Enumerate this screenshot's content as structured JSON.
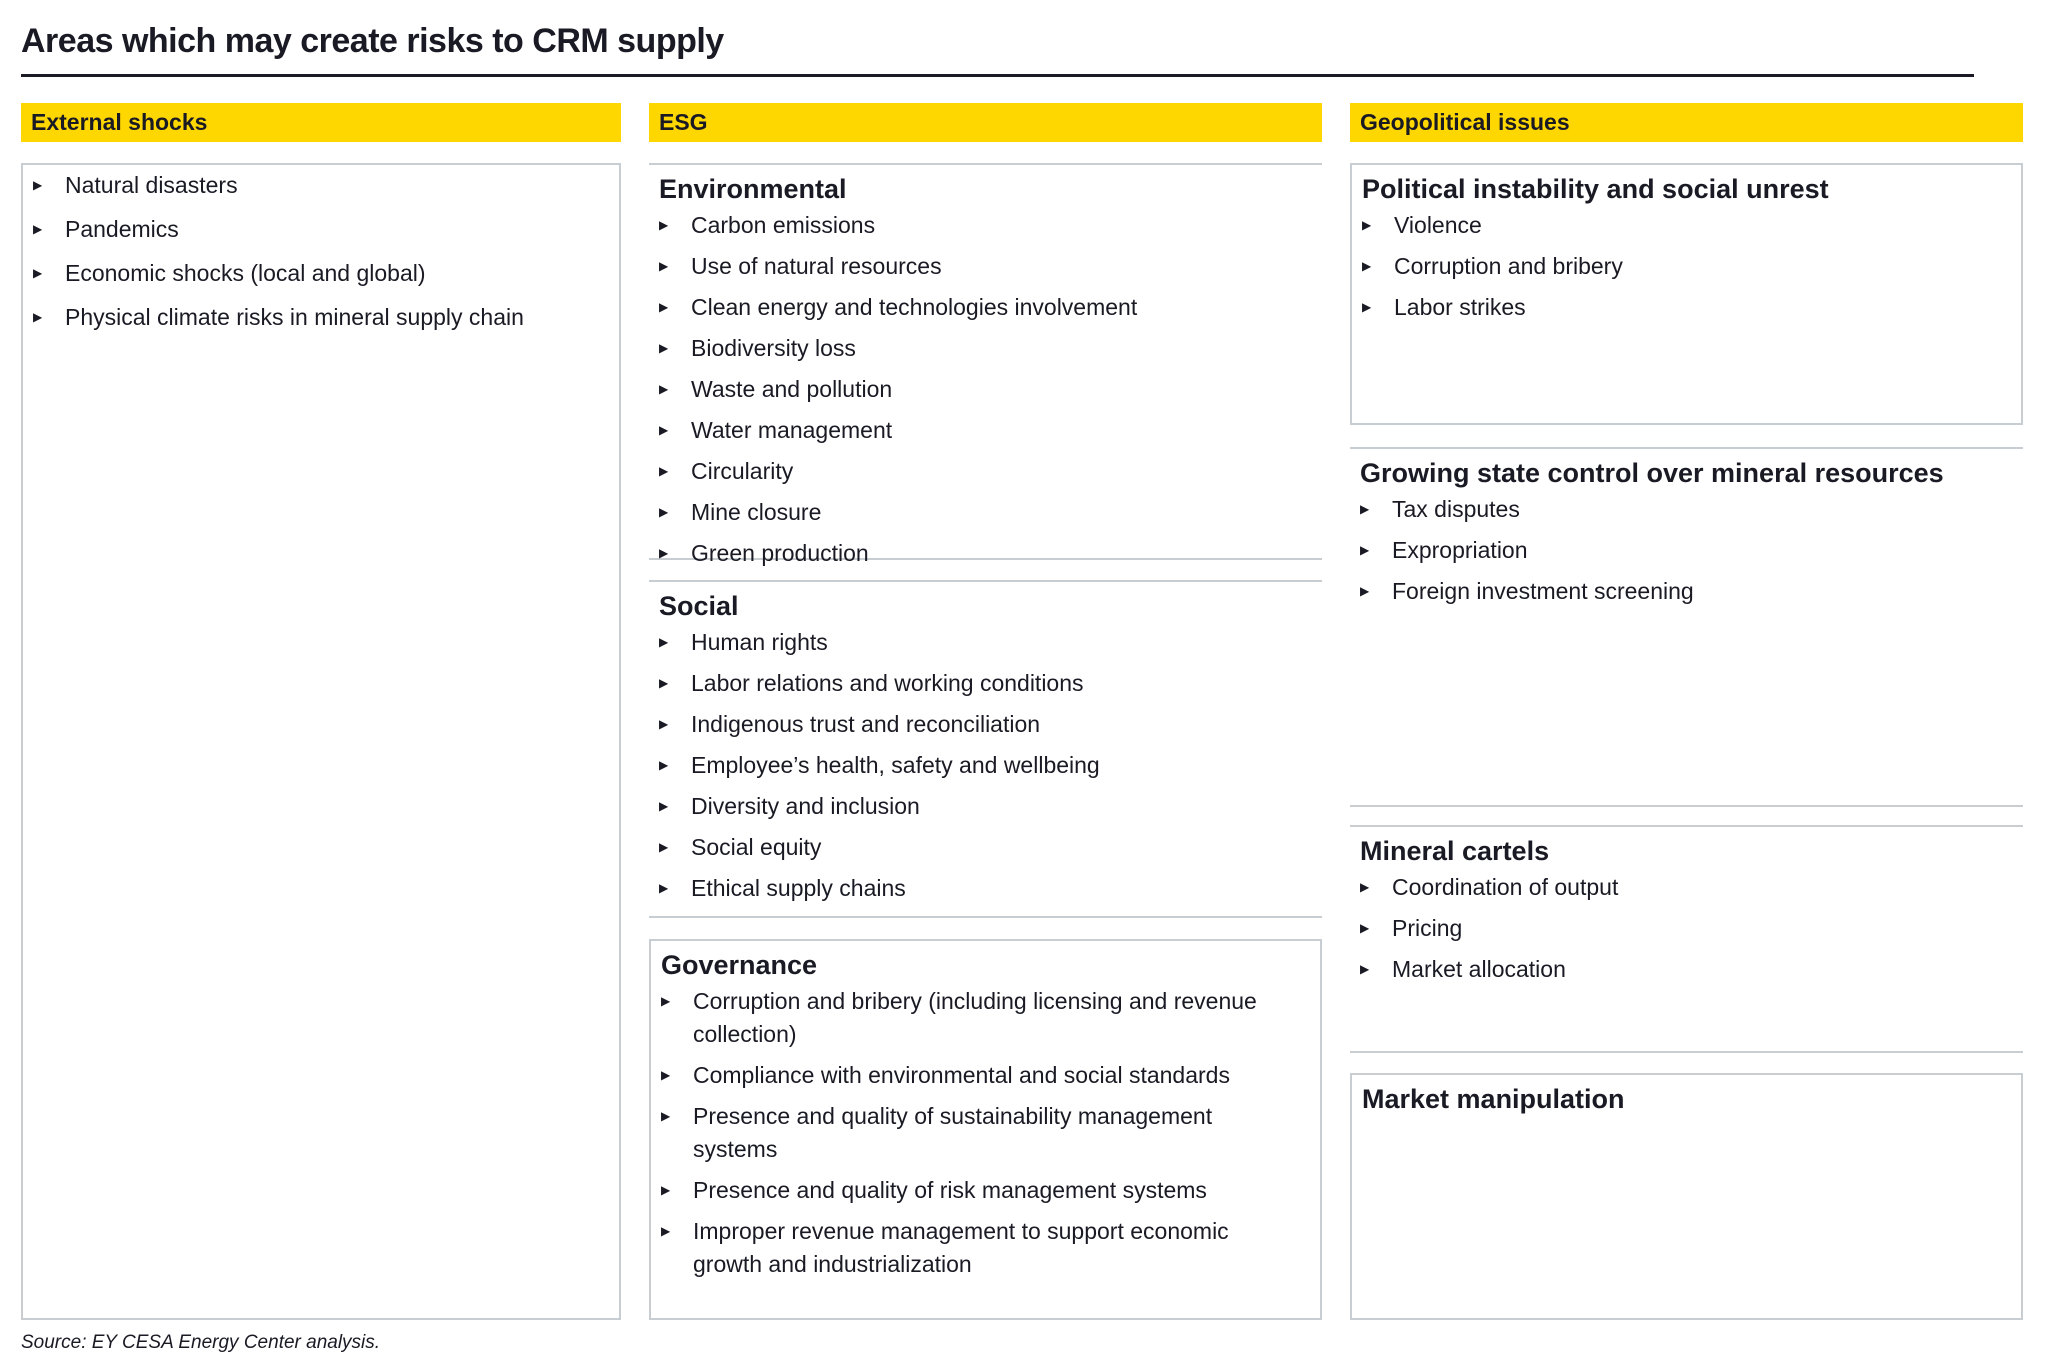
{
  "title": "Areas which may create risks to CRM supply",
  "accent_color": "#ffd700",
  "bullet_icon": "triangle-right",
  "columns": [
    {
      "header": "External shocks",
      "items": [
        "Natural disasters",
        "Pandemics",
        "Economic shocks (local and global)",
        "Physical climate risks in mineral supply chain"
      ]
    },
    {
      "header": "ESG",
      "sections": [
        {
          "title": "Environmental",
          "items": [
            "Carbon emissions",
            "Use of natural resources",
            "Clean energy and technologies involvement",
            "Biodiversity loss",
            "Waste and pollution",
            "Water management",
            "Circularity",
            "Mine closure",
            "Green production"
          ]
        },
        {
          "title": "Social",
          "items": [
            "Human rights",
            "Labor relations and working conditions",
            "Indigenous trust and reconciliation",
            "Employee’s health, safety and wellbeing",
            "Diversity and inclusion",
            "Social equity",
            "Ethical supply chains"
          ]
        },
        {
          "title": "Governance",
          "items": [
            "Corruption and bribery (including licensing and revenue collection)",
            "Compliance with environmental and social standards",
            "Presence and quality of sustainability management systems",
            "Presence and quality of risk management systems",
            "Improper revenue management to support economic growth and industrialization"
          ]
        }
      ]
    },
    {
      "header": "Geopolitical issues",
      "sections": [
        {
          "title": "Political instability and social unrest",
          "items": [
            "Violence",
            "Corruption and bribery",
            "Labor strikes"
          ]
        },
        {
          "title": "Growing state control over mineral resources",
          "items": [
            "Tax disputes",
            "Expropriation",
            "Foreign investment screening"
          ]
        },
        {
          "title": "Mineral cartels",
          "items": [
            "Coordination of output",
            "Pricing",
            "Market allocation"
          ]
        },
        {
          "title": "Market manipulation",
          "items": []
        }
      ]
    }
  ],
  "source": "Source: EY CESA Energy Center analysis."
}
